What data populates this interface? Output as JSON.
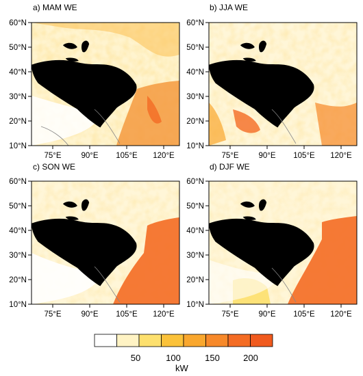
{
  "panels": [
    {
      "title": "a) MAM WE",
      "season": "MAM"
    },
    {
      "title": "b) JJA WE",
      "season": "JJA"
    },
    {
      "title": "c) SON WE",
      "season": "SON"
    },
    {
      "title": "d) DJF WE",
      "season": "DJF"
    }
  ],
  "lat_labels": [
    "60°N",
    "50°N",
    "40°N",
    "30°N",
    "20°N",
    "10°N"
  ],
  "lon_labels": [
    "75°E",
    "90°E",
    "105°E",
    "120°E"
  ],
  "colorbar": {
    "labels": [
      "50",
      "100",
      "150",
      "200"
    ],
    "unit": "kW",
    "colors": [
      "#ffffff",
      "#fff3c4",
      "#fde06e",
      "#fbc23a",
      "#f9a72e",
      "#f7892a",
      "#f46c24",
      "#f05a1e"
    ]
  }
}
